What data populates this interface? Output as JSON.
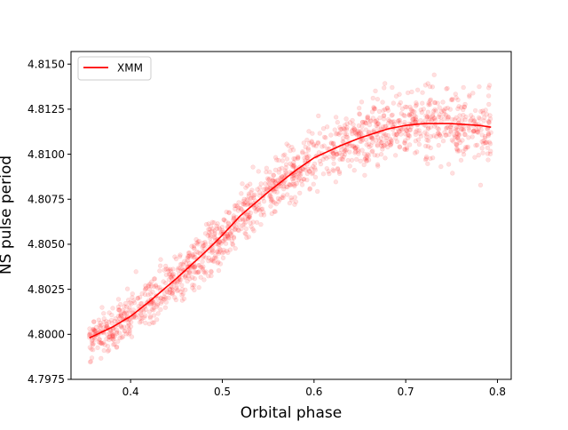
{
  "chart_data": {
    "type": "scatter",
    "title": "",
    "xlabel": "Orbital phase",
    "ylabel": "NS pulse period",
    "xlim": [
      0.335,
      0.815
    ],
    "ylim": [
      4.7975,
      4.8157
    ],
    "x_ticks": [
      0.4,
      0.5,
      0.6,
      0.7,
      0.8
    ],
    "x_tick_labels": [
      "0.4",
      "0.5",
      "0.6",
      "0.7",
      "0.8"
    ],
    "y_ticks": [
      4.7975,
      4.8,
      4.8025,
      4.805,
      4.8075,
      4.81,
      4.8125,
      4.815
    ],
    "y_tick_labels": [
      "4.7975",
      "4.8000",
      "4.8025",
      "4.8050",
      "4.8075",
      "4.8100",
      "4.8125",
      "4.8150"
    ],
    "grid": false,
    "legend": {
      "position": "top-left",
      "entries": [
        "XMM"
      ]
    },
    "colors": {
      "series": "#ff0000",
      "points": "#ff0000"
    },
    "series": [
      {
        "name": "XMM",
        "style": "line",
        "x": [
          0.355,
          0.38,
          0.4,
          0.42,
          0.45,
          0.48,
          0.5,
          0.52,
          0.55,
          0.58,
          0.6,
          0.63,
          0.65,
          0.68,
          0.7,
          0.72,
          0.75,
          0.78,
          0.793
        ],
        "y": [
          4.7998,
          4.8004,
          4.801,
          4.8018,
          4.8031,
          4.8045,
          4.8055,
          4.8066,
          4.8079,
          4.8091,
          4.8098,
          4.8105,
          4.8109,
          4.8114,
          4.8116,
          4.8117,
          4.8117,
          4.8116,
          4.8115
        ]
      },
      {
        "style": "scatter",
        "x_range": [
          0.355,
          0.793
        ],
        "scatter_sd": 0.0008,
        "point_count": 1500,
        "point_alpha": 0.12
      }
    ]
  }
}
